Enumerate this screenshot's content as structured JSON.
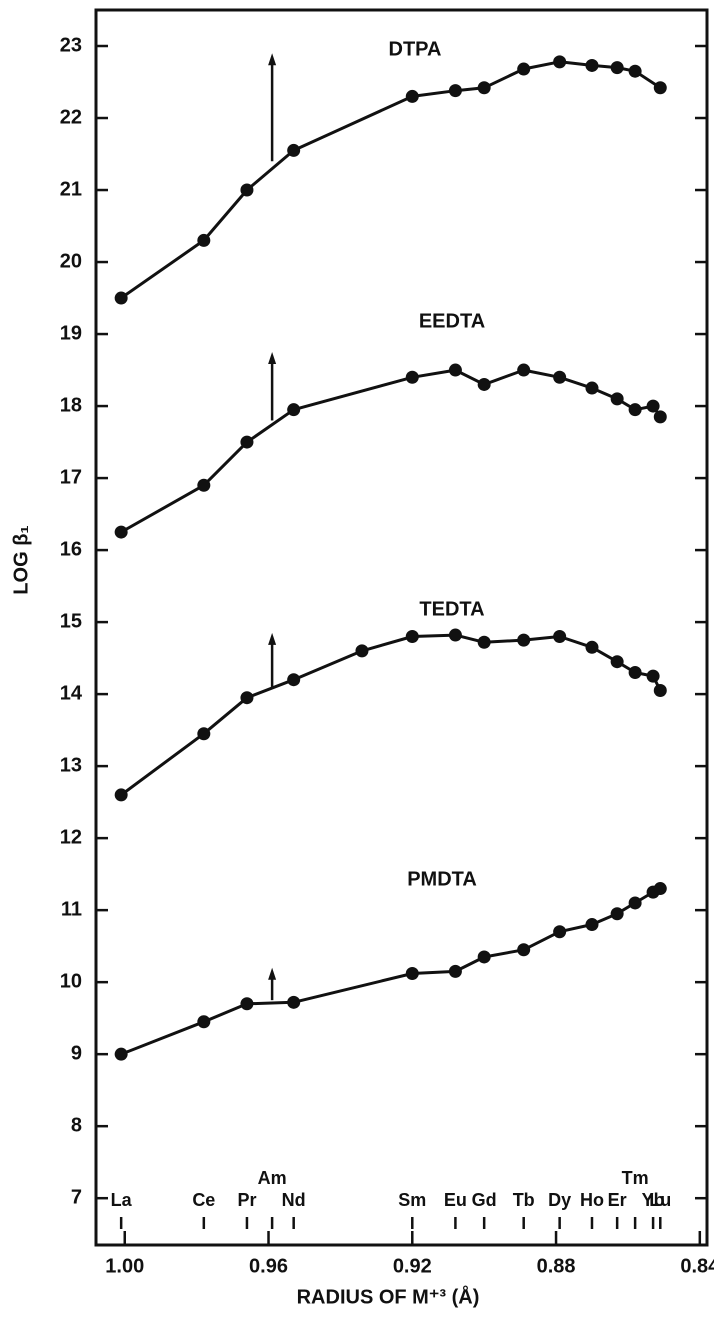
{
  "chart_data": {
    "type": "line",
    "xlabel": "RADIUS OF M⁺³ (Å)",
    "ylabel": "LOG β₁",
    "x": [
      1.001,
      0.978,
      0.966,
      0.953,
      0.934,
      0.92,
      0.908,
      0.9,
      0.889,
      0.879,
      0.87,
      0.863,
      0.858,
      0.853,
      0.851
    ],
    "series": [
      {
        "name": "DTPA",
        "color": "#111111",
        "values": [
          19.5,
          20.3,
          21.0,
          21.55,
          null,
          22.3,
          22.38,
          22.42,
          22.68,
          22.78,
          22.73,
          22.7,
          22.65,
          null,
          22.42
        ],
        "arrow": [
          21.4,
          22.9
        ]
      },
      {
        "name": "EEDTA",
        "color": "#111111",
        "values": [
          16.25,
          16.9,
          17.5,
          17.95,
          null,
          18.4,
          18.5,
          18.3,
          18.5,
          18.4,
          18.25,
          18.1,
          17.95,
          18.0,
          17.85
        ],
        "arrow": [
          17.8,
          18.75
        ]
      },
      {
        "name": "TEDTA",
        "color": "#111111",
        "values": [
          12.6,
          13.45,
          13.95,
          14.2,
          14.6,
          14.8,
          14.82,
          14.72,
          14.75,
          14.8,
          14.65,
          14.45,
          14.3,
          14.25,
          14.05
        ],
        "arrow": [
          14.1,
          14.85
        ]
      },
      {
        "name": "PMDTA",
        "color": "#111111",
        "values": [
          9.0,
          9.45,
          9.7,
          9.72,
          null,
          10.12,
          10.15,
          10.35,
          10.45,
          10.7,
          10.8,
          10.95,
          11.1,
          11.25,
          11.3
        ],
        "arrow": [
          9.75,
          10.2
        ]
      }
    ],
    "arrow_x": 0.959,
    "element_ticks": [
      {
        "value": 1.001,
        "label": "La"
      },
      {
        "value": 0.978,
        "label": "Ce"
      },
      {
        "value": 0.966,
        "label": "Pr"
      },
      {
        "value": 0.959,
        "label": "Am"
      },
      {
        "value": 0.953,
        "label": "Nd"
      },
      {
        "value": 0.92,
        "label": "Sm"
      },
      {
        "value": 0.908,
        "label": "Eu"
      },
      {
        "value": 0.9,
        "label": "Gd"
      },
      {
        "value": 0.889,
        "label": "Tb"
      },
      {
        "value": 0.879,
        "label": "Dy"
      },
      {
        "value": 0.87,
        "label": "Ho"
      },
      {
        "value": 0.863,
        "label": "Er"
      },
      {
        "value": 0.858,
        "label": "Tm"
      },
      {
        "value": 0.853,
        "label": "Yb"
      },
      {
        "value": 0.851,
        "label": "Lu"
      }
    ],
    "xlim": [
      1.008,
      0.838
    ],
    "xticks": [
      {
        "value": 1.0,
        "label": "1.00"
      },
      0.96,
      0.92,
      0.88,
      0.84
    ],
    "ylim": [
      6.35,
      23.5
    ],
    "yticks": [
      7,
      8,
      9,
      10,
      11,
      12,
      13,
      14,
      15,
      16,
      17,
      18,
      19,
      20,
      21,
      22,
      23
    ]
  }
}
